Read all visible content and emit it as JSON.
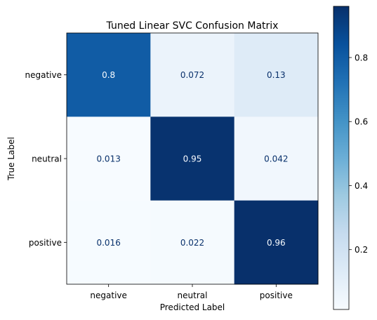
{
  "chart_data": {
    "type": "heatmap",
    "title": "Tuned Linear SVC Confusion Matrix",
    "xlabel": "Predicted Label",
    "ylabel": "True Label",
    "x_categories": [
      "negative",
      "neutral",
      "positive"
    ],
    "y_categories": [
      "negative",
      "neutral",
      "positive"
    ],
    "values": [
      [
        0.8,
        0.072,
        0.13
      ],
      [
        0.013,
        0.95,
        0.042
      ],
      [
        0.016,
        0.022,
        0.96
      ]
    ],
    "value_labels": [
      [
        "0.8",
        "0.072",
        "0.13"
      ],
      [
        "0.013",
        "0.95",
        "0.042"
      ],
      [
        "0.016",
        "0.022",
        "0.96"
      ]
    ],
    "colormap": "Blues",
    "colorbar": {
      "range": [
        0.013,
        0.96
      ],
      "ticks": [
        0.2,
        0.4,
        0.6,
        0.8
      ],
      "tick_labels": [
        "0.2",
        "0.4",
        "0.6",
        "0.8"
      ]
    },
    "grid": false
  }
}
